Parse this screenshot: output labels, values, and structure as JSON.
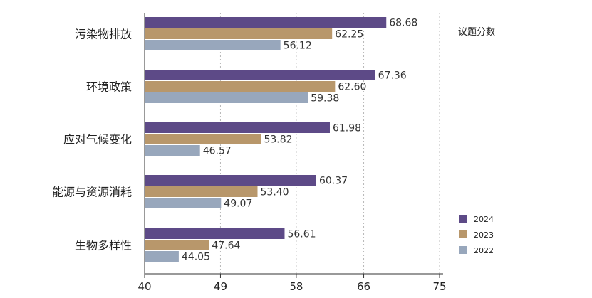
{
  "chart_data": {
    "type": "bar",
    "orientation": "horizontal",
    "title": "议题分数",
    "categories": [
      "污染物排放",
      "环境政策",
      "应对气候变化",
      "能源与资源消耗",
      "生物多样性"
    ],
    "series": [
      {
        "name": "2024",
        "color": "#5d4a87",
        "values": [
          68.68,
          67.36,
          61.98,
          60.37,
          56.61
        ]
      },
      {
        "name": "2023",
        "color": "#b8976b",
        "values": [
          62.25,
          62.6,
          53.82,
          53.4,
          47.64
        ]
      },
      {
        "name": "2022",
        "color": "#98a7bc",
        "values": [
          56.12,
          59.38,
          46.57,
          49.07,
          44.05
        ]
      }
    ],
    "x_ticks": [
      40,
      49,
      58,
      66,
      75
    ],
    "xlim": [
      40,
      76
    ],
    "legend": [
      "2024",
      "2023",
      "2022"
    ],
    "legend_position": "right",
    "gridlines": "vertical-dotted"
  }
}
